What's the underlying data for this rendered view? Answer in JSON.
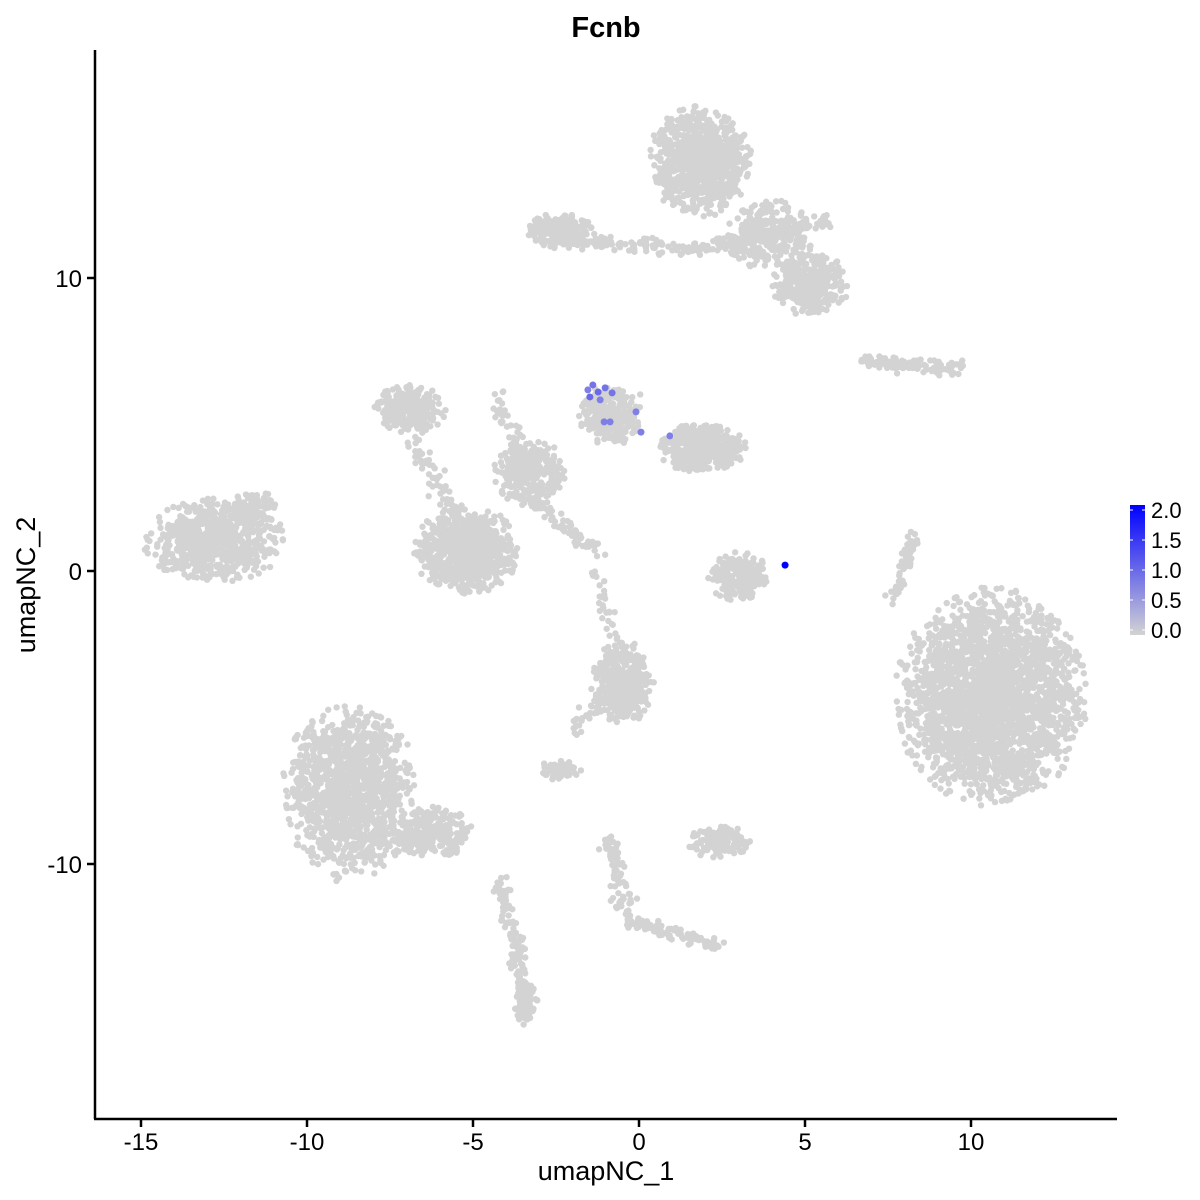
{
  "chart_data": {
    "type": "scatter",
    "title": "Fcnb",
    "xlabel": "umapNC_1",
    "ylabel": "umapNC_2",
    "xlim": [
      -16.5,
      14.4
    ],
    "ylim": [
      -18.4,
      17.8
    ],
    "x_ticks": [
      -15,
      -10,
      -5,
      0,
      5,
      10
    ],
    "x_tick_labels": [
      "-15",
      "-10",
      "-5",
      "0",
      "5",
      "10"
    ],
    "y_ticks": [
      -10,
      0,
      10
    ],
    "y_tick_labels": [
      "-10",
      "0",
      "10"
    ],
    "grid": false,
    "legend": {
      "placement": "right",
      "type": "colorbar",
      "range": [
        0,
        2.0
      ],
      "tick_labels": [
        "2.0",
        "1.5",
        "1.0",
        "0.5",
        "0.0"
      ],
      "tick_values": [
        2.0,
        1.5,
        1.0,
        0.5,
        0.0
      ],
      "low_color": "#d3d3d3",
      "high_color": "#0000ff"
    },
    "background_point_color": "#d3d3d3",
    "background_value": 0,
    "background_clusters": [
      {
        "x": 1.84,
        "y": 14.0,
        "sx": 1.3,
        "sy": 1.6,
        "n": 900
      },
      {
        "x": 5.15,
        "y": 9.8,
        "sx": 1.0,
        "sy": 0.9,
        "n": 350
      },
      {
        "x": 3.9,
        "y": 11.5,
        "sx": 1.2,
        "sy": 1.0,
        "n": 300
      },
      {
        "x": -2.4,
        "y": 11.6,
        "sx": 0.9,
        "sy": 0.5,
        "n": 200
      },
      {
        "x": -12.77,
        "y": 1.06,
        "sx": 1.8,
        "sy": 1.2,
        "n": 700
      },
      {
        "x": -11.6,
        "y": 2.2,
        "sx": 0.6,
        "sy": 0.5,
        "n": 80
      },
      {
        "x": -8.7,
        "y": -7.5,
        "sx": 1.7,
        "sy": 2.5,
        "n": 1300
      },
      {
        "x": -6.2,
        "y": -9.0,
        "sx": 1.0,
        "sy": 0.8,
        "n": 250
      },
      {
        "x": 10.6,
        "y": -4.3,
        "sx": 2.4,
        "sy": 3.1,
        "n": 2600
      },
      {
        "x": -5.2,
        "y": 0.7,
        "sx": 1.3,
        "sy": 1.3,
        "n": 800
      },
      {
        "x": -6.9,
        "y": 5.5,
        "sx": 0.9,
        "sy": 0.7,
        "n": 300
      },
      {
        "x": -3.3,
        "y": 3.4,
        "sx": 0.9,
        "sy": 1.0,
        "n": 300
      },
      {
        "x": 1.9,
        "y": 4.2,
        "sx": 1.1,
        "sy": 0.7,
        "n": 500
      },
      {
        "x": -0.9,
        "y": 5.3,
        "sx": 0.8,
        "sy": 0.9,
        "n": 300
      },
      {
        "x": 3.0,
        "y": -0.2,
        "sx": 0.8,
        "sy": 0.7,
        "n": 200
      },
      {
        "x": -0.5,
        "y": -3.8,
        "sx": 0.8,
        "sy": 1.2,
        "n": 350
      },
      {
        "x": -2.4,
        "y": -6.8,
        "sx": 0.5,
        "sy": 0.3,
        "n": 80
      },
      {
        "x": 2.4,
        "y": -9.2,
        "sx": 0.8,
        "sy": 0.5,
        "n": 150
      },
      {
        "x": -3.4,
        "y": -14.8,
        "sx": 0.3,
        "sy": 0.6,
        "n": 80
      }
    ],
    "background_strands": [
      {
        "from": [
          -4.2,
          -10.5
        ],
        "to": [
          -3.4,
          -14.5
        ],
        "n": 120
      },
      {
        "from": [
          -0.9,
          -9.2
        ],
        "to": [
          -0.3,
          -11.9
        ],
        "n": 80
      },
      {
        "from": [
          -0.3,
          -11.9
        ],
        "to": [
          2.4,
          -12.8
        ],
        "n": 80
      },
      {
        "from": [
          8.2,
          1.2
        ],
        "to": [
          7.7,
          -1.0
        ],
        "n": 60
      },
      {
        "from": [
          6.7,
          7.2
        ],
        "to": [
          9.7,
          6.9
        ],
        "n": 120
      },
      {
        "from": [
          -2.6,
          11.3
        ],
        "to": [
          1.8,
          11.0
        ],
        "n": 120
      },
      {
        "from": [
          1.8,
          11.0
        ],
        "to": [
          5.8,
          12.0
        ],
        "n": 120
      },
      {
        "from": [
          -4.3,
          6.0
        ],
        "to": [
          -3.5,
          3.6
        ],
        "n": 50
      },
      {
        "from": [
          -3.0,
          2.2
        ],
        "to": [
          -1.2,
          0.6
        ],
        "n": 60
      },
      {
        "from": [
          -1.4,
          0.2
        ],
        "to": [
          -0.7,
          -2.3
        ],
        "n": 30
      },
      {
        "from": [
          -2.0,
          -5.5
        ],
        "to": [
          -0.9,
          -3.8
        ],
        "n": 40
      },
      {
        "from": [
          -6.9,
          4.6
        ],
        "to": [
          -5.4,
          1.8
        ],
        "n": 60
      }
    ],
    "expressing_points": [
      {
        "x": -1.39,
        "y": 6.35,
        "value": 0.9
      },
      {
        "x": -1.23,
        "y": 6.11,
        "value": 1.0
      },
      {
        "x": -1.02,
        "y": 6.25,
        "value": 0.9
      },
      {
        "x": -1.48,
        "y": 5.94,
        "value": 1.0
      },
      {
        "x": -0.81,
        "y": 6.08,
        "value": 0.9
      },
      {
        "x": -1.17,
        "y": 5.84,
        "value": 0.8
      },
      {
        "x": -1.54,
        "y": 6.18,
        "value": 0.8
      },
      {
        "x": -1.05,
        "y": 5.09,
        "value": 0.8
      },
      {
        "x": -0.87,
        "y": 5.09,
        "value": 0.8
      },
      {
        "x": -0.09,
        "y": 5.43,
        "value": 0.8
      },
      {
        "x": 0.06,
        "y": 4.74,
        "value": 0.8
      },
      {
        "x": 0.93,
        "y": 4.61,
        "value": 0.8
      },
      {
        "x": 4.4,
        "y": 0.2,
        "value": 2.0
      }
    ]
  }
}
